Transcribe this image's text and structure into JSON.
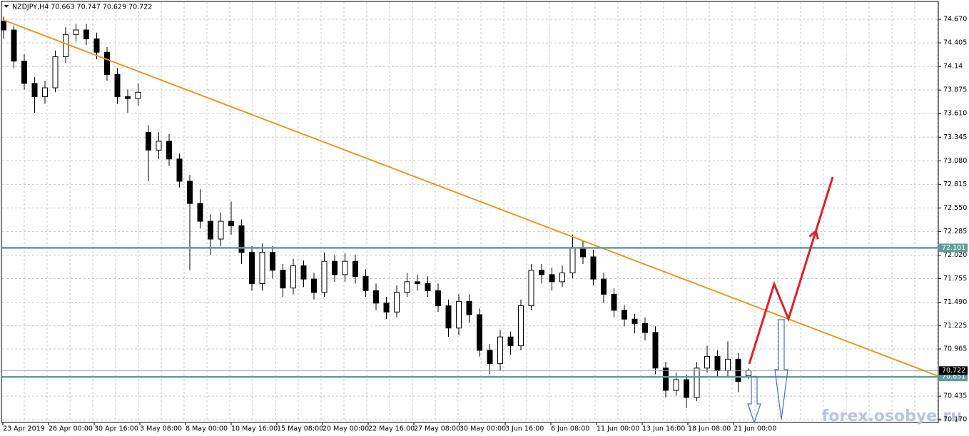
{
  "chart_data": {
    "type": "candlestick",
    "title": "NZDJPY,H4  70.663 70.747 70.629 70.722",
    "open": [
      74.65,
      74.55,
      74.2,
      73.95,
      73.8,
      73.9,
      74.25,
      74.5,
      74.55,
      74.45,
      74.3,
      74.05,
      73.8,
      73.78,
      73.4,
      73.2,
      73.3,
      73.1,
      72.85,
      72.6,
      72.4,
      72.2,
      72.4,
      72.35,
      72.05,
      71.7,
      72.05,
      71.85,
      71.65,
      71.9,
      71.75,
      71.6,
      71.95,
      71.8,
      71.95,
      71.78,
      71.62,
      71.48,
      71.38,
      71.6,
      71.72,
      71.7,
      71.62,
      71.45,
      71.2,
      71.5,
      71.35,
      70.95,
      70.8,
      71.1,
      71.0,
      71.45,
      71.85,
      71.8,
      71.72,
      71.82,
      72.1,
      72.0,
      71.75,
      71.58,
      71.4,
      71.3,
      71.25,
      71.15,
      70.75,
      70.5,
      70.62,
      70.42,
      70.75,
      70.88,
      70.72,
      70.85,
      70.663
    ],
    "high": [
      74.7,
      74.6,
      74.28,
      74.02,
      73.98,
      74.32,
      74.58,
      74.62,
      74.62,
      74.52,
      74.36,
      74.12,
      73.88,
      73.95,
      73.48,
      73.4,
      73.38,
      73.16,
      72.92,
      72.76,
      72.48,
      72.5,
      72.62,
      72.42,
      72.12,
      72.15,
      72.12,
      71.92,
      71.98,
      71.96,
      71.82,
      72.05,
      72.02,
      72.04,
      72.02,
      71.86,
      71.7,
      71.55,
      71.68,
      71.82,
      71.8,
      71.78,
      71.7,
      71.52,
      71.58,
      71.58,
      71.42,
      71.02,
      71.18,
      71.16,
      71.52,
      71.92,
      71.92,
      71.88,
      71.9,
      72.25,
      72.18,
      72.08,
      71.82,
      71.65,
      71.46,
      71.36,
      71.32,
      71.22,
      70.82,
      70.7,
      70.68,
      70.82,
      71.0,
      70.95,
      71.05,
      70.92,
      70.747
    ],
    "low": [
      74.45,
      74.12,
      73.88,
      73.62,
      73.72,
      73.85,
      74.18,
      74.42,
      74.38,
      74.22,
      73.98,
      73.72,
      73.62,
      73.7,
      72.85,
      73.1,
      73.02,
      72.78,
      71.85,
      72.32,
      72.02,
      72.12,
      72.25,
      71.92,
      71.62,
      71.62,
      71.76,
      71.55,
      71.58,
      71.66,
      71.52,
      71.55,
      71.72,
      71.72,
      71.7,
      71.55,
      71.4,
      71.3,
      71.32,
      71.55,
      71.62,
      71.55,
      71.38,
      71.1,
      71.12,
      71.26,
      70.88,
      70.68,
      70.72,
      70.9,
      70.95,
      71.4,
      71.7,
      71.62,
      71.66,
      71.76,
      71.92,
      71.68,
      71.48,
      71.32,
      71.22,
      71.14,
      71.06,
      70.68,
      70.42,
      70.44,
      70.3,
      70.38,
      70.7,
      70.64,
      70.66,
      70.48,
      70.629
    ],
    "close": [
      74.55,
      74.2,
      73.95,
      73.8,
      73.9,
      74.25,
      74.5,
      74.55,
      74.45,
      74.3,
      74.05,
      73.8,
      73.78,
      73.85,
      73.2,
      73.3,
      73.1,
      72.85,
      72.6,
      72.4,
      72.2,
      72.4,
      72.35,
      72.05,
      71.7,
      72.05,
      71.85,
      71.65,
      71.9,
      71.75,
      71.6,
      71.95,
      71.8,
      71.95,
      71.78,
      71.62,
      71.48,
      71.38,
      71.6,
      71.72,
      71.7,
      71.62,
      71.45,
      71.2,
      71.5,
      71.35,
      70.95,
      70.8,
      71.1,
      71.0,
      71.45,
      71.85,
      71.8,
      71.72,
      71.82,
      72.1,
      72.0,
      71.75,
      71.58,
      71.4,
      71.3,
      71.25,
      71.15,
      70.75,
      70.5,
      70.62,
      70.42,
      70.75,
      70.88,
      70.72,
      70.85,
      70.6,
      70.722
    ],
    "ylim": [
      70.139,
      74.887
    ],
    "yticks": [
      {
        "value": 74.67,
        "label": "74.670"
      },
      74.405,
      74.14,
      73.875,
      {
        "value": 73.61,
        "label": "73.610"
      },
      73.345,
      {
        "value": 73.08,
        "label": "73.080"
      },
      72.815,
      {
        "value": 72.55,
        "label": "72.550"
      },
      72.285,
      {
        "value": 72.02,
        "label": "72.020"
      },
      71.755,
      {
        "value": 71.49,
        "label": "71.490"
      },
      71.225,
      70.965,
      70.435,
      {
        "value": 70.17,
        "label": "70.170"
      }
    ],
    "xticks": [
      "23 Apr 2019",
      "26 Apr 00:00",
      "30 Apr 16:00",
      "3 May 08:00",
      "8 May 00:00",
      "10 May 16:00",
      "15 May 08:00",
      "20 May 00:00",
      "22 May 16:00",
      "27 May 08:00",
      "30 May 00:00",
      "3 Jun 16:00",
      "6 Jun 08:00",
      "11 Jun 00:00",
      "13 Jun 16:00",
      "18 Jun 08:00",
      "21 Jun 00:00"
    ],
    "grid": true,
    "levels": [
      {
        "value": 72.101,
        "color": "#5f9ea0"
      },
      {
        "value": 70.651,
        "color": "#5f9ea0"
      },
      {
        "value": 70.722,
        "color": "#a0a0a0"
      }
    ],
    "trend_line": {
      "x": [
        0,
        90.34
      ],
      "y": [
        74.662,
        70.66
      ],
      "color": "#f0961e"
    },
    "forecast": {
      "x": [
        72.07,
        74.48,
        75.86,
        80.14
      ],
      "y": [
        70.797,
        71.695,
        71.302,
        72.898
      ],
      "color": "#e0202a"
    },
    "watermark": "forex.osobye.ru"
  }
}
